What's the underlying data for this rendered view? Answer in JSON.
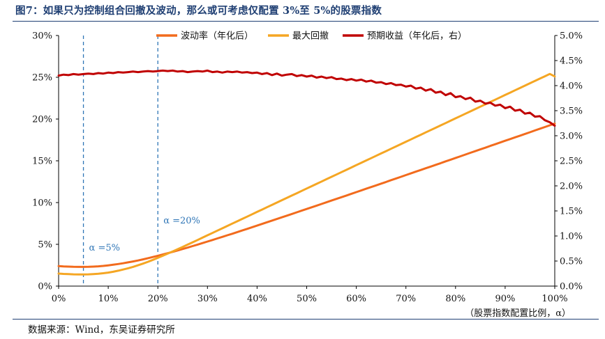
{
  "header": {
    "title": "图7：如果只为控制组合回撤及波动，那么或可考虑仅配置 3%至 5%的股票指数"
  },
  "footer": {
    "source": "数据来源：Wind，东吴证券研究所"
  },
  "chart_data": {
    "type": "line",
    "xlabel": "（股票指数配置比例，α）",
    "xlim": [
      0,
      100
    ],
    "x_ticks": [
      "0%",
      "10%",
      "20%",
      "30%",
      "40%",
      "50%",
      "60%",
      "70%",
      "80%",
      "90%",
      "100%"
    ],
    "ylim_left": [
      0,
      30
    ],
    "y_left_ticks": [
      "0%",
      "5%",
      "10%",
      "15%",
      "20%",
      "25%",
      "30%"
    ],
    "ylim_right": [
      0,
      5
    ],
    "y_right_ticks": [
      "0.0%",
      "0.5%",
      "1.0%",
      "1.5%",
      "2.0%",
      "2.5%",
      "3.0%",
      "3.5%",
      "4.0%",
      "4.5%",
      "5.0%"
    ],
    "grid": false,
    "legend_position": "top-center",
    "x": [
      0,
      1,
      2,
      3,
      4,
      5,
      6,
      7,
      8,
      9,
      10,
      11,
      12,
      13,
      14,
      15,
      16,
      17,
      18,
      19,
      20,
      21,
      22,
      23,
      24,
      25,
      26,
      27,
      28,
      29,
      30,
      31,
      32,
      33,
      34,
      35,
      36,
      37,
      38,
      39,
      40,
      41,
      42,
      43,
      44,
      45,
      46,
      47,
      48,
      49,
      50,
      51,
      52,
      53,
      54,
      55,
      56,
      57,
      58,
      59,
      60,
      61,
      62,
      63,
      64,
      65,
      66,
      67,
      68,
      69,
      70,
      71,
      72,
      73,
      74,
      75,
      76,
      77,
      78,
      79,
      80,
      81,
      82,
      83,
      84,
      85,
      86,
      87,
      88,
      89,
      90,
      91,
      92,
      93,
      94,
      95,
      96,
      97,
      98,
      99,
      100
    ],
    "series": [
      {
        "name": "波动率（年化后）",
        "axis": "left",
        "color": "#f26b1d",
        "values": [
          2.4,
          2.36,
          2.33,
          2.31,
          2.3,
          2.3,
          2.31,
          2.33,
          2.37,
          2.42,
          2.48,
          2.56,
          2.64,
          2.73,
          2.84,
          2.95,
          3.07,
          3.2,
          3.34,
          3.48,
          3.63,
          3.78,
          3.94,
          4.1,
          4.27,
          4.44,
          4.61,
          4.79,
          4.97,
          5.15,
          5.33,
          5.52,
          5.71,
          5.89,
          6.08,
          6.27,
          6.47,
          6.66,
          6.85,
          7.05,
          7.24,
          7.44,
          7.64,
          7.84,
          8.03,
          8.23,
          8.43,
          8.63,
          8.83,
          9.03,
          9.23,
          9.43,
          9.63,
          9.83,
          10.03,
          10.24,
          10.44,
          10.64,
          10.84,
          11.05,
          11.25,
          11.45,
          11.66,
          11.86,
          12.06,
          12.27,
          12.47,
          12.68,
          12.88,
          13.08,
          13.29,
          13.49,
          13.7,
          13.9,
          14.11,
          14.31,
          14.52,
          14.72,
          14.93,
          15.13,
          15.34,
          15.54,
          15.75,
          15.96,
          16.16,
          16.37,
          16.57,
          16.78,
          16.98,
          17.19,
          17.4,
          17.6,
          17.81,
          18.01,
          18.22,
          18.42,
          18.63,
          18.84,
          19.04,
          19.25,
          19.45
        ]
      },
      {
        "name": "最大回撤",
        "axis": "left",
        "color": "#f5a623",
        "values": [
          1.5,
          1.46,
          1.43,
          1.41,
          1.4,
          1.4,
          1.41,
          1.44,
          1.48,
          1.54,
          1.62,
          1.72,
          1.84,
          1.98,
          2.13,
          2.3,
          2.49,
          2.69,
          2.91,
          3.14,
          3.38,
          3.63,
          3.89,
          4.15,
          4.42,
          4.69,
          4.97,
          5.24,
          5.52,
          5.8,
          6.08,
          6.36,
          6.64,
          6.92,
          7.2,
          7.48,
          7.76,
          8.04,
          8.32,
          8.6,
          8.88,
          9.16,
          9.44,
          9.72,
          10,
          10.28,
          10.56,
          10.84,
          11.12,
          11.4,
          11.68,
          11.96,
          12.24,
          12.52,
          12.8,
          13.08,
          13.36,
          13.64,
          13.92,
          14.2,
          14.48,
          14.76,
          15.04,
          15.32,
          15.6,
          15.88,
          16.16,
          16.44,
          16.72,
          17,
          17.28,
          17.56,
          17.84,
          18.12,
          18.4,
          18.68,
          18.96,
          19.24,
          19.52,
          19.8,
          20.08,
          20.36,
          20.64,
          20.92,
          21.2,
          21.48,
          21.76,
          22.04,
          22.32,
          22.6,
          22.88,
          23.16,
          23.44,
          23.72,
          24,
          24.28,
          24.56,
          24.84,
          25.12,
          25.4,
          25.1
        ]
      },
      {
        "name": "预期收益（年化后，右）",
        "axis": "right",
        "color": "#c00000",
        "values": [
          4.2,
          4.22,
          4.21,
          4.23,
          4.22,
          4.23,
          4.24,
          4.23,
          4.25,
          4.24,
          4.26,
          4.25,
          4.27,
          4.26,
          4.27,
          4.28,
          4.27,
          4.28,
          4.29,
          4.28,
          4.29,
          4.3,
          4.29,
          4.3,
          4.28,
          4.29,
          4.27,
          4.28,
          4.29,
          4.28,
          4.3,
          4.27,
          4.28,
          4.26,
          4.28,
          4.27,
          4.28,
          4.26,
          4.27,
          4.25,
          4.26,
          4.23,
          4.25,
          4.21,
          4.24,
          4.2,
          4.22,
          4.23,
          4.19,
          4.21,
          4.18,
          4.2,
          4.16,
          4.18,
          4.15,
          4.17,
          4.13,
          4.14,
          4.11,
          4.13,
          4.1,
          4.12,
          4.08,
          4.1,
          4.06,
          4.07,
          4.03,
          4.05,
          4.01,
          4.02,
          3.98,
          4,
          3.94,
          3.96,
          3.9,
          3.93,
          3.86,
          3.88,
          3.81,
          3.85,
          3.77,
          3.79,
          3.73,
          3.76,
          3.68,
          3.7,
          3.64,
          3.66,
          3.6,
          3.62,
          3.55,
          3.58,
          3.5,
          3.52,
          3.44,
          3.46,
          3.38,
          3.39,
          3.31,
          3.27,
          3.2
        ]
      }
    ],
    "reference_lines": [
      {
        "x": 5,
        "label": "α =5%",
        "style": "dashed",
        "color": "#2e75b6"
      },
      {
        "x": 20,
        "label": "α =20%",
        "style": "dashed",
        "color": "#2e75b6"
      }
    ]
  }
}
